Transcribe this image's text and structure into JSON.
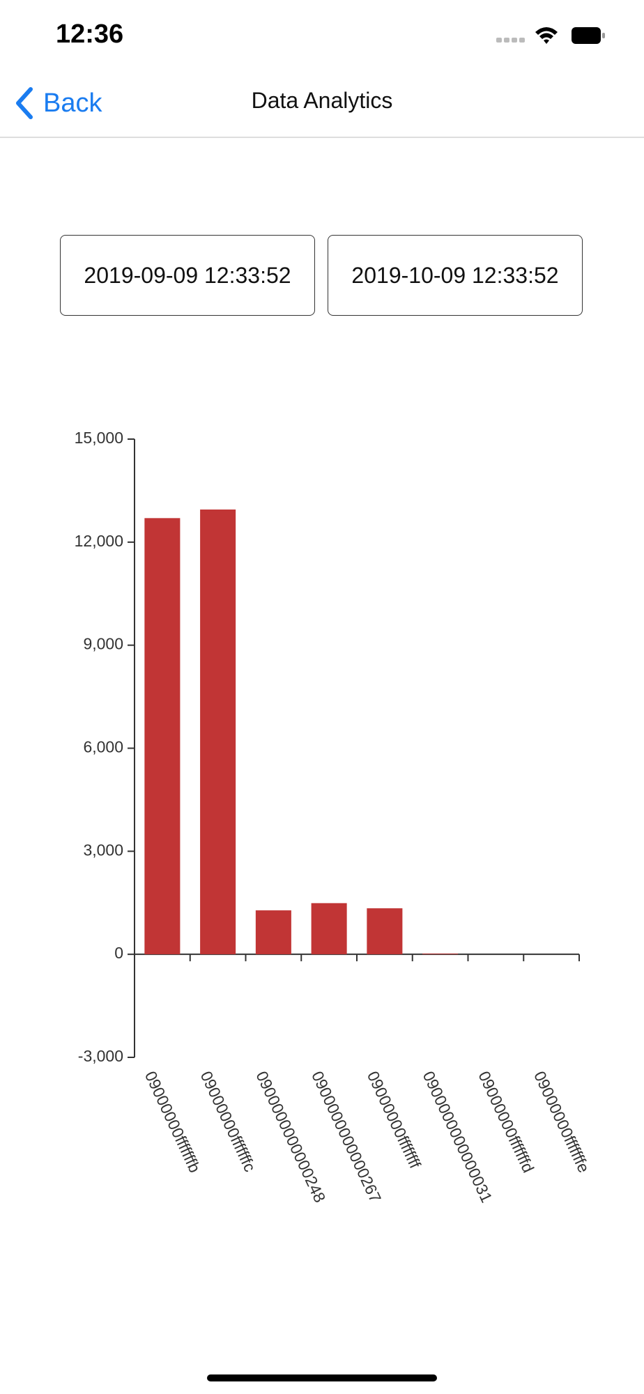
{
  "status_bar": {
    "time": "12:36"
  },
  "nav": {
    "back": "Back",
    "title": "Data Analytics"
  },
  "date_range": {
    "start": "2019-09-09 12:33:52",
    "end": "2019-10-09 12:33:52"
  },
  "chart_data": {
    "type": "bar",
    "categories": [
      "09000000fffffffb",
      "09000000fffffffc",
      "0900000000000248",
      "0900000000000267",
      "09000000ffffffff",
      "0900000000000031",
      "09000000fffffffd",
      "09000000fffffffe"
    ],
    "values": [
      12700,
      12950,
      1280,
      1490,
      1340,
      20,
      0,
      0
    ],
    "color": "#c13535",
    "ylim": [
      -3000,
      15000
    ],
    "yticks": [
      {
        "value": -3000,
        "label": "-3,000"
      },
      0,
      {
        "value": 3000,
        "label": "3,000"
      },
      {
        "value": 6000,
        "label": "6,000"
      },
      {
        "value": 9000,
        "label": "9,000"
      },
      {
        "value": 12000,
        "label": "12,000"
      },
      {
        "value": 15000,
        "label": "15,000"
      }
    ],
    "grid": false
  }
}
